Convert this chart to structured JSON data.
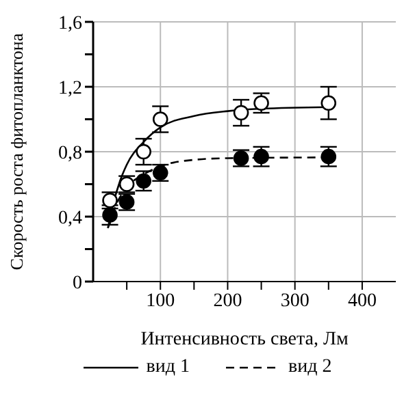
{
  "chart_data": {
    "type": "scatter",
    "xlabel": "Интенсивность света, Лм",
    "ylabel": "Скорость роста фитопланктона",
    "xlim": [
      0,
      450
    ],
    "ylim": [
      0,
      1.6
    ],
    "xticks": [
      {
        "value": 50,
        "label": null
      },
      100,
      {
        "value": 150,
        "label": null
      },
      200,
      {
        "value": 250,
        "label": null
      },
      300,
      {
        "value": 350,
        "label": null
      },
      400
    ],
    "yticks": [
      {
        "value": 0,
        "label": "0"
      },
      {
        "value": 0.2,
        "label": null
      },
      {
        "value": 0.4,
        "label": "0,4"
      },
      {
        "value": 0.6,
        "label": null
      },
      {
        "value": 0.8,
        "label": "0,8"
      },
      {
        "value": 1.0,
        "label": null
      },
      {
        "value": 1.2,
        "label": "1,2"
      },
      {
        "value": 1.4,
        "label": null
      },
      {
        "value": 1.6,
        "label": "1,6"
      }
    ],
    "grid": true,
    "legend": "bottom",
    "marker": "circle",
    "series": [
      {
        "color": "#ffffff",
        "x": [
          25,
          50,
          75,
          100,
          220,
          250,
          350
        ],
        "values": [
          0.5,
          0.6,
          0.8,
          1.0,
          1.04,
          1.1,
          1.1
        ],
        "errors": [
          0.05,
          0.05,
          0.08,
          0.08,
          0.08,
          0.06,
          0.1
        ]
      },
      {
        "color": "#000000",
        "x": [
          25,
          50,
          75,
          100,
          220,
          250,
          350
        ],
        "values": [
          0.41,
          0.49,
          0.62,
          0.67,
          0.76,
          0.77,
          0.77
        ],
        "errors": [
          0.06,
          0.05,
          0.06,
          0.05,
          0.05,
          0.06,
          0.06
        ]
      },
      {
        "type": "line",
        "name": "вид 1",
        "color": "#000000",
        "line_style": "solid",
        "marker": "none",
        "x": [
          22,
          30,
          40,
          50,
          75,
          100,
          150,
          200,
          250,
          350
        ],
        "values": [
          0.33,
          0.48,
          0.62,
          0.72,
          0.86,
          0.95,
          1.02,
          1.05,
          1.065,
          1.075
        ]
      },
      {
        "type": "line",
        "name": "вид 2",
        "color": "#000000",
        "line_style": "dashed",
        "marker": "none",
        "x": [
          22,
          35,
          50,
          75,
          100,
          150,
          200,
          350
        ],
        "values": [
          0.33,
          0.48,
          0.58,
          0.66,
          0.71,
          0.75,
          0.76,
          0.765
        ]
      }
    ]
  }
}
